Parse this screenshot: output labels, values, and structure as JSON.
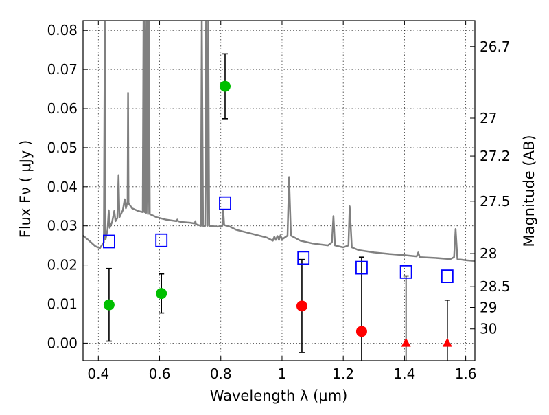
{
  "chart_data": {
    "type": "scatter",
    "xlabel": "Wavelength  λ (μm)",
    "ylabel": "Flux  Fν  ( μJy )",
    "y2label": "Magnitude (AB)",
    "xlim": [
      0.35,
      1.63
    ],
    "ylim": [
      -0.0045,
      0.0825
    ],
    "grid": true,
    "x_ticks": [
      {
        "value": 0.4,
        "label": "0.4"
      },
      {
        "value": 0.6,
        "label": "0.6"
      },
      {
        "value": 0.8,
        "label": "0.8"
      },
      {
        "value": 1.0,
        "label": "1"
      },
      {
        "value": 1.2,
        "label": "1.2"
      },
      {
        "value": 1.4,
        "label": "1.4"
      },
      {
        "value": 1.6,
        "label": "1.6"
      }
    ],
    "y_ticks": [
      {
        "value": 0.0,
        "label": "0.00"
      },
      {
        "value": 0.01,
        "label": "0.01"
      },
      {
        "value": 0.02,
        "label": "0.02"
      },
      {
        "value": 0.03,
        "label": "0.03"
      },
      {
        "value": 0.04,
        "label": "0.04"
      },
      {
        "value": 0.05,
        "label": "0.05"
      },
      {
        "value": 0.06,
        "label": "0.06"
      },
      {
        "value": 0.07,
        "label": "0.07"
      },
      {
        "value": 0.08,
        "label": "0.08"
      }
    ],
    "y2_ticks": [
      {
        "value": 26.7,
        "label": "26.7"
      },
      {
        "value": 27.0,
        "label": "27"
      },
      {
        "value": 27.2,
        "label": "27.2"
      },
      {
        "value": 27.5,
        "label": "27.5"
      },
      {
        "value": 28.0,
        "label": "28"
      },
      {
        "value": 28.5,
        "label": "28.5"
      },
      {
        "value": 29.0,
        "label": "29"
      },
      {
        "value": 30.0,
        "label": "30"
      }
    ],
    "series": [
      {
        "marker": "circle",
        "color": "#00bf00",
        "points": [
          {
            "x": 0.435,
            "y": 0.0098,
            "err_low": 0.0093,
            "err_high": 0.0093
          },
          {
            "x": 0.606,
            "y": 0.0127,
            "err_low": 0.005,
            "err_high": 0.005
          },
          {
            "x": 0.814,
            "y": 0.0657,
            "err_low": 0.0083,
            "err_high": 0.0083
          }
        ]
      },
      {
        "marker": "circle",
        "color": "#ff0000",
        "points": [
          {
            "x": 1.065,
            "y": 0.0095,
            "err_low": 0.0119,
            "err_high": 0.0119
          },
          {
            "x": 1.26,
            "y": 0.003,
            "err_low": 0.019,
            "err_high": 0.019
          }
        ]
      },
      {
        "marker": "triangle",
        "color": "#ff0000",
        "points": [
          {
            "x": 1.405,
            "y": 0.0,
            "err_low": 0.0172,
            "err_high": 0.0172
          },
          {
            "x": 1.54,
            "y": 0.0,
            "err_low": 0.011,
            "err_high": 0.011
          }
        ]
      },
      {
        "marker": "open-square",
        "color": "#0000ff",
        "points": [
          {
            "x": 0.435,
            "y": 0.026
          },
          {
            "x": 0.606,
            "y": 0.0263
          },
          {
            "x": 0.814,
            "y": 0.0358
          },
          {
            "x": 1.07,
            "y": 0.0218
          },
          {
            "x": 1.26,
            "y": 0.0193
          },
          {
            "x": 1.405,
            "y": 0.0182
          },
          {
            "x": 1.54,
            "y": 0.0171
          }
        ]
      },
      {
        "marker": "line",
        "color": "#808080",
        "points": [
          [
            0.35,
            0.0275
          ],
          [
            0.37,
            0.0262
          ],
          [
            0.39,
            0.0248
          ],
          [
            0.405,
            0.0243
          ],
          [
            0.418,
            0.0258
          ],
          [
            0.421,
            0.083
          ],
          [
            0.4235,
            0.0265
          ],
          [
            0.43,
            0.029
          ],
          [
            0.434,
            0.034
          ],
          [
            0.437,
            0.0295
          ],
          [
            0.445,
            0.031
          ],
          [
            0.452,
            0.0338
          ],
          [
            0.456,
            0.0312
          ],
          [
            0.462,
            0.032
          ],
          [
            0.466,
            0.043
          ],
          [
            0.469,
            0.0322
          ],
          [
            0.48,
            0.034
          ],
          [
            0.486,
            0.0368
          ],
          [
            0.49,
            0.0345
          ],
          [
            0.4955,
            0.0362
          ],
          [
            0.497,
            0.064
          ],
          [
            0.4985,
            0.0358
          ],
          [
            0.51,
            0.0345
          ],
          [
            0.53,
            0.0338
          ],
          [
            0.545,
            0.0335
          ],
          [
            0.5475,
            0.083
          ],
          [
            0.5505,
            0.0335
          ],
          [
            0.553,
            0.083
          ],
          [
            0.556,
            0.0333
          ],
          [
            0.559,
            0.083
          ],
          [
            0.562,
            0.033
          ],
          [
            0.565,
            0.083
          ],
          [
            0.568,
            0.033
          ],
          [
            0.59,
            0.0322
          ],
          [
            0.62,
            0.0316
          ],
          [
            0.655,
            0.0312
          ],
          [
            0.658,
            0.0316
          ],
          [
            0.6605,
            0.0312
          ],
          [
            0.67,
            0.031
          ],
          [
            0.7,
            0.0308
          ],
          [
            0.715,
            0.0306
          ],
          [
            0.717,
            0.0312
          ],
          [
            0.719,
            0.0304
          ],
          [
            0.735,
            0.03
          ],
          [
            0.738,
            0.083
          ],
          [
            0.742,
            0.03
          ],
          [
            0.749,
            0.03
          ],
          [
            0.752,
            0.083
          ],
          [
            0.756,
            0.03
          ],
          [
            0.759,
            0.083
          ],
          [
            0.762,
            0.03
          ],
          [
            0.79,
            0.0298
          ],
          [
            0.805,
            0.03
          ],
          [
            0.808,
            0.034
          ],
          [
            0.811,
            0.0302
          ],
          [
            0.83,
            0.0298
          ],
          [
            0.85,
            0.029
          ],
          [
            0.9,
            0.028
          ],
          [
            0.95,
            0.027
          ],
          [
            0.97,
            0.0262
          ],
          [
            0.975,
            0.0272
          ],
          [
            0.98,
            0.0264
          ],
          [
            0.985,
            0.0274
          ],
          [
            0.99,
            0.0264
          ],
          [
            0.995,
            0.0276
          ],
          [
            1.0,
            0.0265
          ],
          [
            1.005,
            0.0268
          ],
          [
            1.018,
            0.0275
          ],
          [
            1.023,
            0.0425
          ],
          [
            1.029,
            0.0275
          ],
          [
            1.06,
            0.0262
          ],
          [
            1.1,
            0.0255
          ],
          [
            1.15,
            0.025
          ],
          [
            1.163,
            0.0258
          ],
          [
            1.168,
            0.0325
          ],
          [
            1.173,
            0.025
          ],
          [
            1.2,
            0.0245
          ],
          [
            1.217,
            0.025
          ],
          [
            1.221,
            0.035
          ],
          [
            1.228,
            0.0245
          ],
          [
            1.25,
            0.0238
          ],
          [
            1.3,
            0.0232
          ],
          [
            1.35,
            0.0228
          ],
          [
            1.4,
            0.0225
          ],
          [
            1.44,
            0.0222
          ],
          [
            1.445,
            0.0232
          ],
          [
            1.45,
            0.022
          ],
          [
            1.5,
            0.0218
          ],
          [
            1.55,
            0.0215
          ],
          [
            1.562,
            0.022
          ],
          [
            1.567,
            0.0292
          ],
          [
            1.573,
            0.0215
          ],
          [
            1.6,
            0.0212
          ],
          [
            1.63,
            0.021
          ]
        ]
      }
    ]
  }
}
